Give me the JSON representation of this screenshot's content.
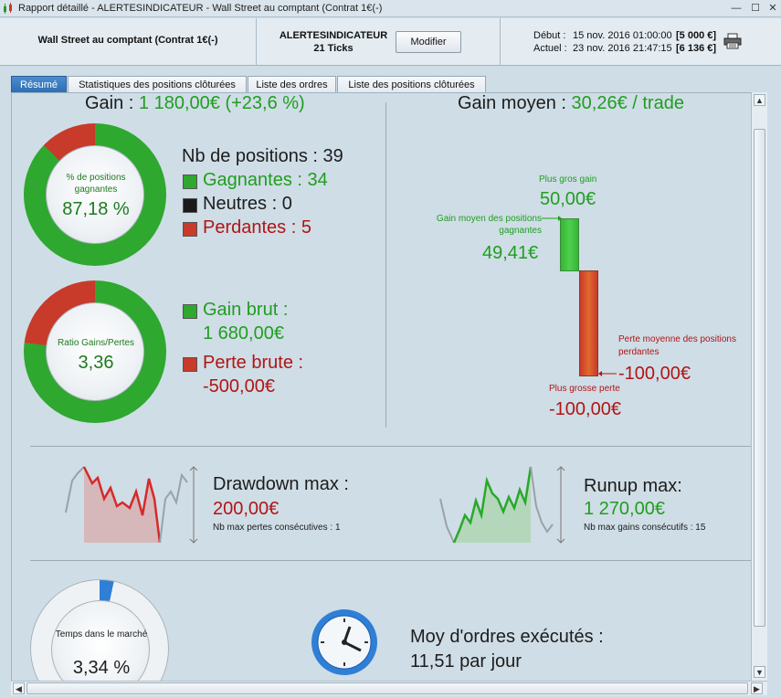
{
  "window": {
    "title": "Rapport détaillé - ALERTESINDICATEUR - Wall Street au comptant (Contrat 1€(-)",
    "minimize": "—",
    "maximize": "☐",
    "close": "✕"
  },
  "header": {
    "instrument": "Wall Street au comptant (Contrat 1€(-)",
    "alert_name": "ALERTESINDICATEUR",
    "ticks": "21 Ticks",
    "modify_label": "Modifier",
    "start_label": "Début :",
    "start_date": "15 nov. 2016 01:00:00",
    "start_value": "[5 000 €]",
    "current_label": "Actuel :",
    "current_date": "23 nov. 2016 21:47:15",
    "current_value": "[6 136 €]",
    "print_icon": "printer-icon"
  },
  "tabs": [
    {
      "label": "Résumé",
      "active": true
    },
    {
      "label": "Statistiques des positions clôturées",
      "active": false
    },
    {
      "label": "Liste des ordres",
      "active": false
    },
    {
      "label": "Liste des positions clôturées",
      "active": false
    }
  ],
  "summary": {
    "gain_label": "Gain : ",
    "gain_value": "1 180,00€ (+23,6 %)",
    "win_donut": {
      "label": "% de positions gagnantes",
      "value": "87,18 %",
      "fraction": 0.8718
    },
    "positions_label": "Nb de positions : 39",
    "winners": "Gagnantes : 34",
    "neutral": "Neutres : 0",
    "losers": "Perdantes : 5",
    "ratio_donut": {
      "label": "Ratio Gains/Pertes",
      "value": "3,36",
      "fraction": 0.7706
    },
    "gross_gain_label": "Gain brut :",
    "gross_gain_value": "1 680,00€",
    "gross_loss_label": "Perte brute :",
    "gross_loss_value": "-500,00€"
  },
  "avg": {
    "title_label": "Gain moyen : ",
    "title_value": "30,26€ / trade",
    "biggest_gain_label": "Plus gros gain",
    "biggest_gain_value": "50,00€",
    "avg_win_label": "Gain moyen des positions gagnantes",
    "avg_win_value": "49,41€",
    "avg_loss_label": "Perte moyenne des positions perdantes",
    "avg_loss_value": "-100,00€",
    "biggest_loss_label": "Plus grosse perte",
    "biggest_loss_value": "-100,00€"
  },
  "drawdown": {
    "label": "Drawdown max :",
    "value": "200,00€",
    "sub": "Nb max pertes consécutives : 1"
  },
  "runup": {
    "label": "Runup max:",
    "value": "1 270,00€",
    "sub": "Nb max gains consécutifs : 15"
  },
  "market": {
    "label": "Temps dans le marché",
    "value": "3,34 %",
    "fraction": 0.0334
  },
  "orders": {
    "label": "Moy d'ordres exécutés :",
    "value": "11,51 par jour"
  },
  "colors": {
    "green": "#2ea82e",
    "red": "#c83a2a",
    "blue": "#2f7fd6",
    "tab_active": "#3a7cc2"
  }
}
